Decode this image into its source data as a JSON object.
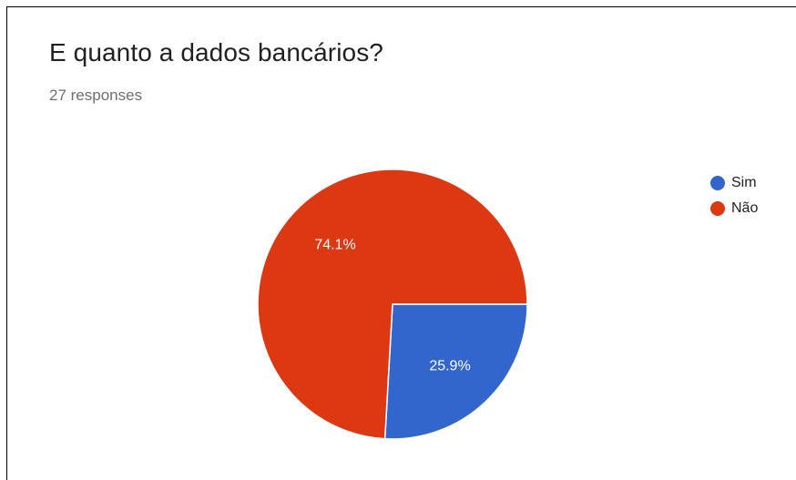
{
  "card": {
    "title": "E quanto a dados bancários?",
    "responses": "27 responses"
  },
  "chart_data": {
    "type": "pie",
    "labels": [
      "Sim",
      "Não"
    ],
    "values": [
      25.9,
      74.1
    ],
    "data_labels": [
      "25.9%",
      "74.1%"
    ],
    "colors": [
      "#3366cc",
      "#dc3912"
    ],
    "legend_position": "right",
    "start_direction": "east",
    "order": "clockwise"
  }
}
